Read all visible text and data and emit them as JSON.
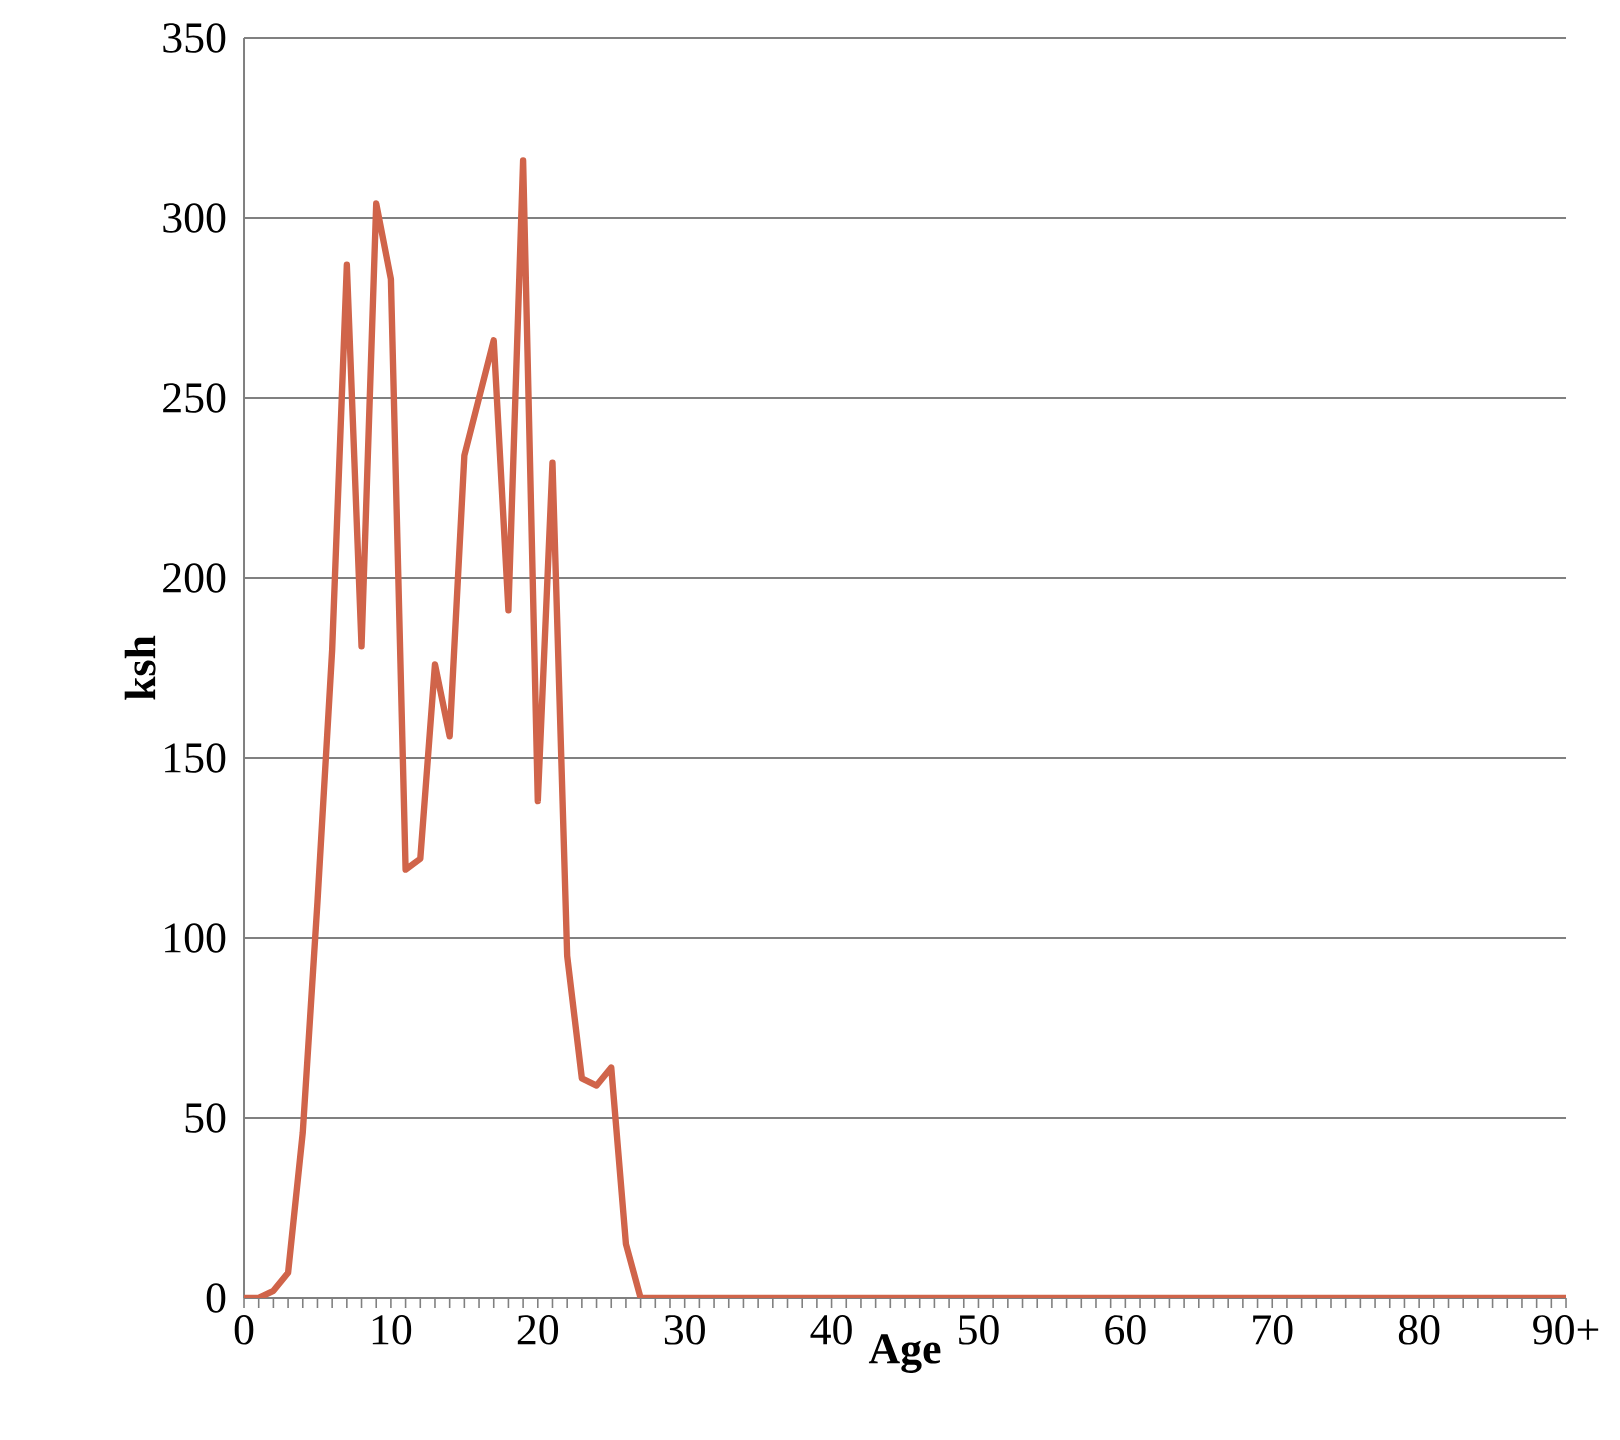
{
  "chart_data": {
    "type": "line",
    "xlabel": "Age",
    "ylabel": "ksh",
    "categories": [
      "0",
      null,
      null,
      null,
      null,
      null,
      null,
      null,
      null,
      null,
      "10",
      null,
      null,
      null,
      null,
      null,
      null,
      null,
      null,
      null,
      "20",
      null,
      null,
      null,
      null,
      null,
      null,
      null,
      null,
      null,
      "30",
      null,
      null,
      null,
      null,
      null,
      null,
      null,
      null,
      null,
      "40",
      null,
      null,
      null,
      null,
      null,
      null,
      null,
      null,
      null,
      "50",
      null,
      null,
      null,
      null,
      null,
      null,
      null,
      null,
      null,
      "60",
      null,
      null,
      null,
      null,
      null,
      null,
      null,
      null,
      null,
      "70",
      null,
      null,
      null,
      null,
      null,
      null,
      null,
      null,
      null,
      "80",
      null,
      null,
      null,
      null,
      null,
      null,
      null,
      null,
      null,
      "90+"
    ],
    "series": [
      {
        "color": "#d0644a",
        "values": [
          0,
          0,
          2,
          7,
          46,
          110,
          180,
          287,
          181,
          304,
          283,
          119,
          122,
          176,
          156,
          234,
          250,
          266,
          191,
          316,
          138,
          232,
          95,
          61,
          59,
          64,
          15,
          0,
          0,
          0,
          0,
          0,
          0,
          0,
          0,
          0,
          0,
          0,
          0,
          0,
          0,
          0,
          0,
          0,
          0,
          0,
          0,
          0,
          0,
          0,
          0,
          0,
          0,
          0,
          0,
          0,
          0,
          0,
          0,
          0,
          0,
          0,
          0,
          0,
          0,
          0,
          0,
          0,
          0,
          0,
          0,
          0,
          0,
          0,
          0,
          0,
          0,
          0,
          0,
          0,
          0,
          0,
          0,
          0,
          0,
          0,
          0,
          0,
          0,
          0,
          0
        ]
      }
    ],
    "ylim": [
      0,
      350
    ],
    "yticks": [
      0,
      50,
      100,
      150,
      200,
      250,
      300,
      350
    ],
    "grid": "y"
  }
}
